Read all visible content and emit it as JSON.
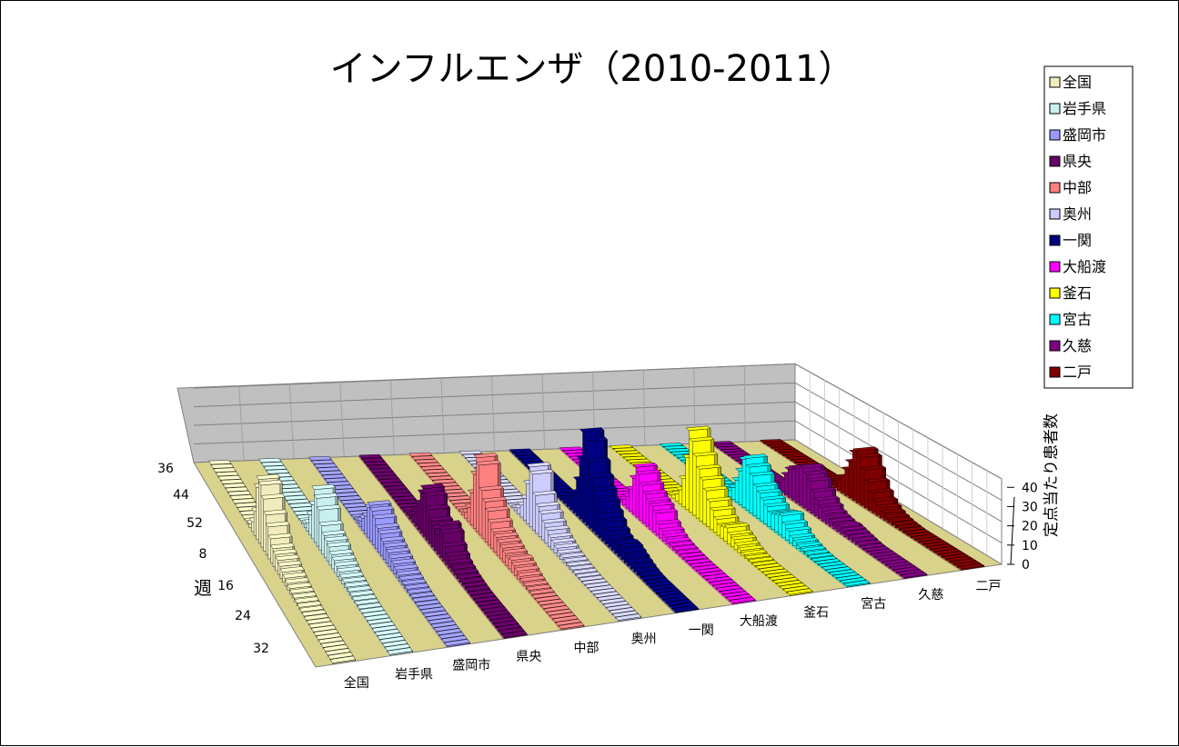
{
  "chart_data": {
    "type": "bar",
    "subtype": "3d-column",
    "title": "インフルエンザ（2010-2011）",
    "ylabel": "定点当たり患者数",
    "xlabel": "週",
    "ylim": [
      0,
      40
    ],
    "yticks": [
      0,
      10,
      20,
      30,
      40
    ],
    "week_tick_labels": [
      "36",
      "44",
      "52",
      "8",
      "16",
      "24",
      "32"
    ],
    "grid": true,
    "legend_position": "right",
    "weeks": [
      "36",
      "37",
      "38",
      "39",
      "40",
      "41",
      "42",
      "43",
      "44",
      "45",
      "46",
      "47",
      "48",
      "49",
      "50",
      "51",
      "52",
      "1",
      "2",
      "3",
      "4",
      "5",
      "6",
      "7",
      "8",
      "9",
      "10",
      "11",
      "12",
      "13",
      "14",
      "15",
      "16",
      "17",
      "18",
      "19",
      "20",
      "21",
      "22",
      "23",
      "24",
      "25",
      "26",
      "27",
      "28",
      "29",
      "30",
      "31",
      "32",
      "33",
      "34",
      "35"
    ],
    "series": [
      {
        "name": "全国",
        "color": "#f2ecbd",
        "values": [
          0,
          0,
          0,
          0,
          0,
          0,
          0,
          0.1,
          0.1,
          0.1,
          0.1,
          0.2,
          0.3,
          0.4,
          0.6,
          1,
          2,
          5,
          12,
          26,
          31.9,
          31,
          26,
          20,
          16,
          12,
          9,
          8,
          7,
          6,
          5,
          4,
          3.3,
          2.7,
          2.2,
          1.8,
          1.4,
          1.1,
          0.8,
          0.6,
          0.5,
          0.4,
          0.3,
          0.2,
          0.2,
          0.1,
          0.1,
          0.1,
          0,
          0,
          0,
          0
        ]
      },
      {
        "name": "岩手県",
        "color": "#c8f0ef",
        "values": [
          0,
          0,
          0,
          0,
          0,
          0,
          0,
          0,
          0,
          0,
          0.1,
          0.1,
          0.1,
          0.2,
          0.3,
          0.5,
          1,
          2,
          4,
          10,
          17,
          26.5,
          24,
          20,
          14,
          11,
          10,
          9,
          7,
          6,
          5,
          4,
          3,
          2.6,
          2.2,
          1.8,
          1.4,
          1.1,
          0.9,
          0.7,
          0.5,
          0.4,
          0.3,
          0.2,
          0.2,
          0.1,
          0.1,
          0.1,
          0,
          0,
          0,
          0
        ]
      },
      {
        "name": "盛岡市",
        "color": "#9999ff",
        "values": [
          0,
          0,
          0,
          0,
          0,
          0,
          0,
          0,
          0,
          0,
          0,
          0.1,
          0.1,
          0.2,
          0.3,
          0.5,
          0.8,
          1.5,
          3,
          6,
          9,
          15,
          18,
          17,
          15,
          12,
          11,
          9,
          8,
          7,
          6,
          5,
          4,
          3,
          2.5,
          2,
          1.6,
          1.2,
          0.9,
          0.7,
          0.5,
          0.4,
          0.3,
          0.2,
          0.1,
          0.1,
          0.1,
          0,
          0,
          0,
          0,
          0
        ]
      },
      {
        "name": "県央",
        "color": "#660066",
        "values": [
          0,
          0,
          0,
          0,
          0,
          0,
          0,
          0,
          0,
          0,
          0,
          0.1,
          0.1,
          0.2,
          0.3,
          0.5,
          1,
          2,
          4,
          7,
          13,
          20,
          24,
          22,
          17,
          13,
          11,
          10,
          16,
          14,
          9,
          6,
          4,
          3,
          2.4,
          1.8,
          1.4,
          1.1,
          0.8,
          0.6,
          0.4,
          0.3,
          0.2,
          0.1,
          0.1,
          0,
          0,
          0,
          0,
          0,
          0,
          0
        ]
      },
      {
        "name": "中部",
        "color": "#ff8080",
        "values": [
          0,
          0,
          0,
          0,
          0,
          0,
          0,
          0,
          0,
          0,
          0,
          0,
          0.1,
          0.1,
          0.2,
          0.4,
          0.8,
          1.5,
          3,
          7,
          16,
          27,
          37,
          35,
          24,
          20,
          17,
          13,
          10,
          9,
          8,
          7,
          6,
          5,
          6,
          5,
          4,
          3,
          2.2,
          1.6,
          1.2,
          0.8,
          0.6,
          0.4,
          0.3,
          0.2,
          0.1,
          0.1,
          0,
          0,
          0,
          0
        ]
      },
      {
        "name": "奥州",
        "color": "#ccccff",
        "values": [
          0,
          0,
          0,
          0,
          0,
          0,
          0,
          0,
          0,
          0,
          0,
          0,
          0.1,
          0.1,
          0.2,
          0.3,
          0.6,
          1.5,
          3,
          6,
          11,
          20,
          30,
          28,
          19,
          15,
          13,
          10,
          8,
          6,
          5,
          4,
          3,
          2.5,
          2,
          1.6,
          1.3,
          1,
          0.8,
          0.6,
          0.4,
          0.3,
          0.2,
          0.1,
          0.1,
          0,
          0,
          0,
          0,
          0,
          0,
          0
        ]
      },
      {
        "name": "一関",
        "color": "#000080",
        "values": [
          0,
          0,
          0,
          0,
          0,
          0,
          0,
          0,
          0,
          0,
          0,
          0,
          0.1,
          0.2,
          0.3,
          0.6,
          1.2,
          2.5,
          5,
          10,
          18,
          30,
          45,
          42,
          33,
          27,
          22,
          18,
          14,
          11,
          8,
          6,
          5,
          6,
          6,
          5,
          4,
          3,
          2.2,
          1.5,
          1,
          0.7,
          0.5,
          0.3,
          0.2,
          0.1,
          0.1,
          0,
          0,
          0,
          0,
          0
        ]
      },
      {
        "name": "大船渡",
        "color": "#ff00ff",
        "values": [
          0,
          0,
          0,
          0,
          0,
          0,
          0,
          0,
          0,
          0,
          0,
          0,
          0.1,
          0.1,
          0.2,
          0.4,
          0.8,
          1.5,
          3,
          6,
          11,
          18,
          25,
          23,
          19,
          16,
          14,
          13,
          11,
          7,
          5,
          3.5,
          2.5,
          2,
          1.6,
          1.2,
          1,
          0.8,
          0.6,
          0.4,
          0.3,
          0.2,
          0.1,
          0.1,
          0,
          0,
          0,
          0,
          0,
          0,
          0,
          0
        ]
      },
      {
        "name": "釜石",
        "color": "#ffff00",
        "values": [
          0,
          0,
          0,
          0,
          0,
          0,
          0,
          0,
          0,
          0,
          0,
          0,
          0.1,
          0.1,
          0.2,
          0.4,
          0.8,
          1.6,
          3.5,
          7,
          14,
          26,
          41,
          37,
          31,
          26,
          22,
          18,
          14,
          11,
          8,
          6,
          7,
          8,
          6,
          5,
          3.5,
          2.5,
          1.8,
          1.2,
          0.9,
          0.6,
          0.4,
          0.3,
          0.2,
          0.1,
          0.1,
          0,
          0,
          0,
          0,
          0
        ]
      },
      {
        "name": "宮古",
        "color": "#00ffff",
        "values": [
          0,
          0,
          0,
          0,
          0,
          0,
          0,
          0,
          0,
          0,
          0,
          0,
          0.1,
          0.1,
          0.2,
          0.3,
          0.7,
          1.5,
          3,
          6,
          11,
          17,
          24,
          26,
          23,
          20,
          16,
          14,
          12,
          10,
          8,
          9,
          10,
          11,
          8,
          6,
          4,
          3,
          2.2,
          1.6,
          1.1,
          0.8,
          0.5,
          0.3,
          0.2,
          0.1,
          0.1,
          0,
          0,
          0,
          0,
          0
        ]
      },
      {
        "name": "久慈",
        "color": "#800080",
        "values": [
          0,
          0,
          0,
          0,
          0,
          0,
          0,
          0,
          0,
          0,
          0,
          0,
          0.1,
          0.1,
          0.2,
          0.4,
          0.9,
          2,
          5,
          10,
          14,
          16,
          17,
          19,
          20,
          18,
          16,
          12,
          9,
          7,
          5,
          4,
          3.5,
          3,
          3.5,
          3,
          2.5,
          2,
          1.5,
          1,
          0.7,
          0.5,
          0.3,
          0.2,
          0.1,
          0.1,
          0,
          0,
          0,
          0,
          0,
          0
        ]
      },
      {
        "name": "二戸",
        "color": "#800000",
        "values": [
          0,
          0,
          0,
          0,
          0,
          0,
          0,
          0,
          0,
          0,
          0,
          0,
          0,
          0.1,
          0.1,
          0.2,
          0.4,
          0.9,
          2,
          4,
          8,
          13,
          18,
          24,
          26,
          24,
          19,
          14,
          10,
          7,
          5,
          3.5,
          2.5,
          1.8,
          1.3,
          1,
          0.7,
          0.5,
          0.3,
          0.2,
          0.1,
          0.1,
          0,
          0,
          0,
          0,
          0,
          0,
          0,
          0,
          0,
          0
        ]
      }
    ]
  }
}
